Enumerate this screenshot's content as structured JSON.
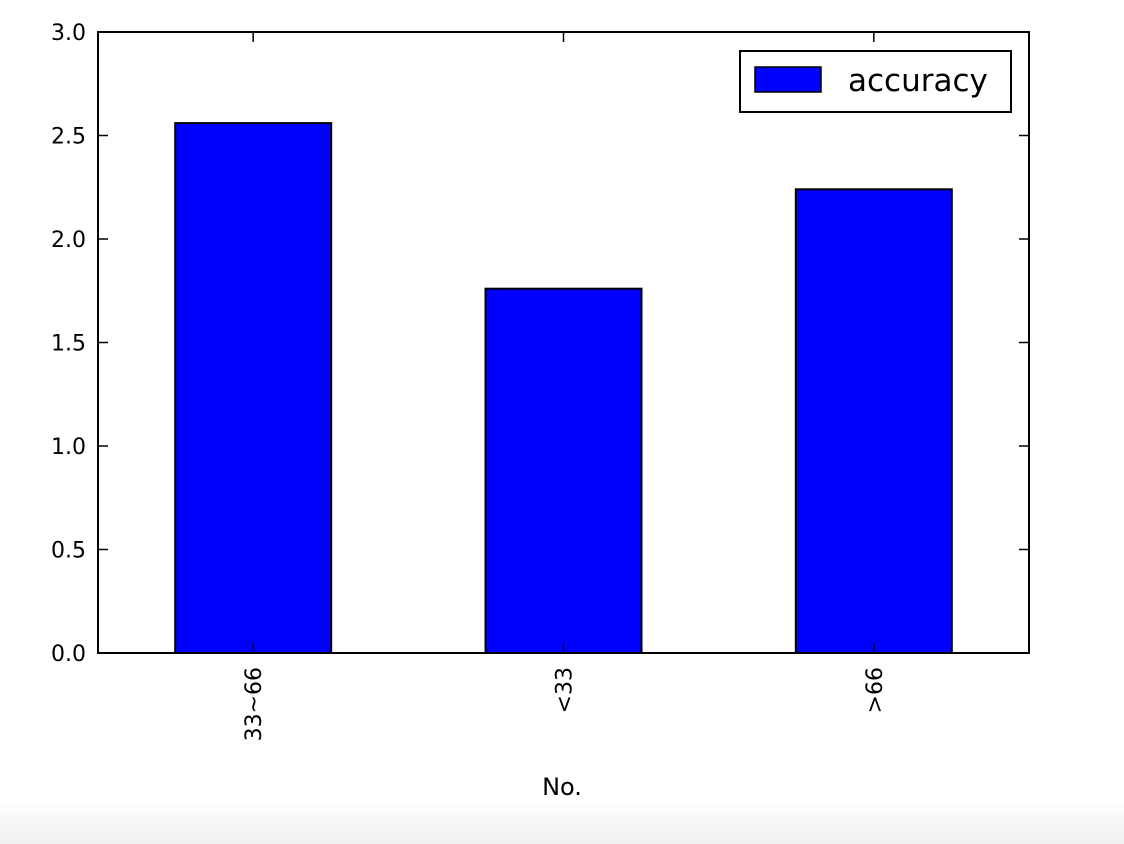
{
  "chart_data": {
    "type": "bar",
    "categories": [
      "33~66",
      "<33",
      ">66"
    ],
    "series": [
      {
        "name": "accuracy",
        "values": [
          2.56,
          1.76,
          2.24
        ],
        "color": "#0000ff"
      }
    ],
    "xlabel": "No.",
    "ylabel": "",
    "ylim": [
      0,
      3.0
    ],
    "yticks": [
      "0.0",
      "0.5",
      "1.0",
      "1.5",
      "2.0",
      "2.5",
      "3.0"
    ],
    "grid": false,
    "legend_position": "top-right"
  }
}
